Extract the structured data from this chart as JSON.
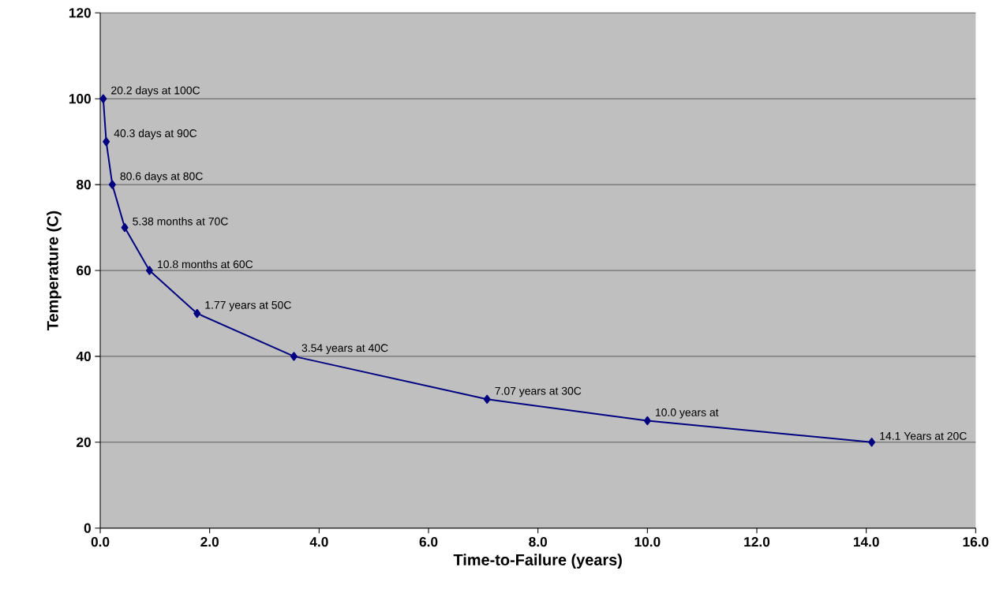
{
  "chart_data": {
    "type": "line",
    "xlabel": "Time-to-Failure (years)",
    "ylabel": "Temperature (C)",
    "x": [
      0.0553,
      0.11,
      0.221,
      0.448,
      0.9,
      1.77,
      3.54,
      7.07,
      10.0,
      14.1
    ],
    "series": [
      {
        "color": "#000080",
        "values": [
          100,
          90,
          80,
          70,
          60,
          50,
          40,
          30,
          25,
          20
        ]
      }
    ],
    "marker": "diamond",
    "line_style": "solid",
    "grid": "y",
    "legend": false,
    "xlim": [
      0,
      16
    ],
    "ylim": [
      0,
      120
    ],
    "xticks": [
      {
        "value": 0,
        "label": "0.0"
      },
      {
        "value": 2,
        "label": "2.0"
      },
      {
        "value": 4,
        "label": "4.0"
      },
      {
        "value": 6,
        "label": "6.0"
      },
      {
        "value": 8,
        "label": "8.0"
      },
      {
        "value": 10,
        "label": "10.0"
      },
      {
        "value": 12,
        "label": "12.0"
      },
      {
        "value": 14,
        "label": "14.0"
      },
      {
        "value": 16,
        "label": "16.0"
      }
    ],
    "yticks": [
      0,
      20,
      40,
      60,
      80,
      100,
      120
    ],
    "annotations": [
      {
        "text": "20.2 days at 100C",
        "x": 0.0553,
        "y": 100
      },
      {
        "text": "40.3 days at 90C",
        "x": 0.11,
        "y": 90
      },
      {
        "text": "80.6 days at 80C",
        "x": 0.221,
        "y": 80
      },
      {
        "text": "5.38 months at 70C",
        "x": 0.448,
        "y": 70
      },
      {
        "text": "10.8 months at 60C",
        "x": 0.9,
        "y": 60
      },
      {
        "text": "1.77 years at 50C",
        "x": 1.77,
        "y": 50
      },
      {
        "text": "3.54 years at 40C",
        "x": 3.54,
        "y": 40
      },
      {
        "text": "7.07 years at 30C",
        "x": 7.07,
        "y": 30
      },
      {
        "text": "10.0 years at",
        "x": 10.0,
        "y": 25
      },
      {
        "text": "14.1 Years at 20C",
        "x": 14.1,
        "y": 20
      }
    ]
  }
}
